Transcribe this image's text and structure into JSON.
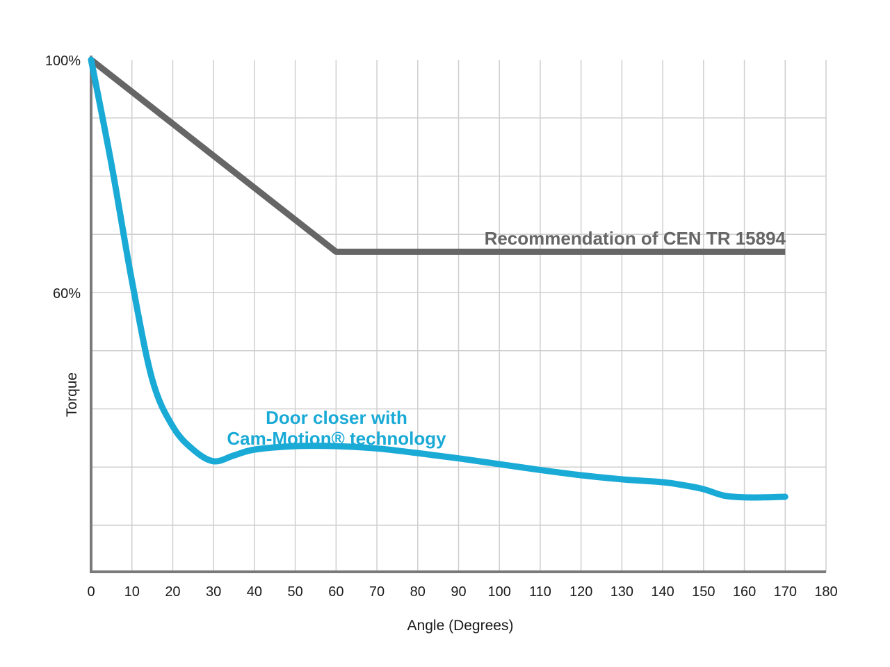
{
  "chart_data": {
    "type": "line",
    "title": "",
    "xlabel": "Angle (Degrees)",
    "ylabel": "Torque",
    "xlim": [
      0,
      180
    ],
    "ylim": [
      12,
      100
    ],
    "x_ticks": [
      0,
      10,
      20,
      30,
      40,
      50,
      60,
      70,
      80,
      90,
      100,
      110,
      120,
      130,
      140,
      150,
      160,
      170,
      180
    ],
    "x_tick_labels": [
      "0",
      "10",
      "20",
      "30",
      "40",
      "50",
      "60",
      "70",
      "80",
      "90",
      "100",
      "110",
      "120",
      "130",
      "140",
      "150",
      "160",
      "170",
      "180"
    ],
    "y_tick_labels": [
      {
        "value": 100,
        "label": "100%"
      },
      {
        "value": 60,
        "label": "60%"
      }
    ],
    "y_gridlines": [
      90,
      80,
      70,
      60,
      50,
      40,
      30,
      20
    ],
    "grid": true,
    "series": [
      {
        "name": "Recommendation of CEN TR 15894",
        "color": "#666666",
        "x": [
          0,
          60,
          170
        ],
        "y": [
          100,
          67,
          67
        ]
      },
      {
        "name_line1": "Door closer with",
        "name_line2": "Cam-Motion® technology",
        "color": "#1aaad6",
        "x": [
          0,
          5,
          10,
          15,
          20,
          25,
          30,
          35,
          40,
          50,
          60,
          70,
          80,
          90,
          100,
          110,
          120,
          130,
          140,
          145,
          150,
          155,
          160,
          165,
          170
        ],
        "y": [
          100,
          82,
          62,
          45,
          37,
          33,
          31,
          32,
          33,
          33.6,
          33.6,
          33.2,
          32.4,
          31.5,
          30.5,
          29.5,
          28.6,
          27.9,
          27.4,
          26.9,
          26.2,
          25.1,
          24.8,
          24.8,
          24.9
        ]
      }
    ]
  }
}
